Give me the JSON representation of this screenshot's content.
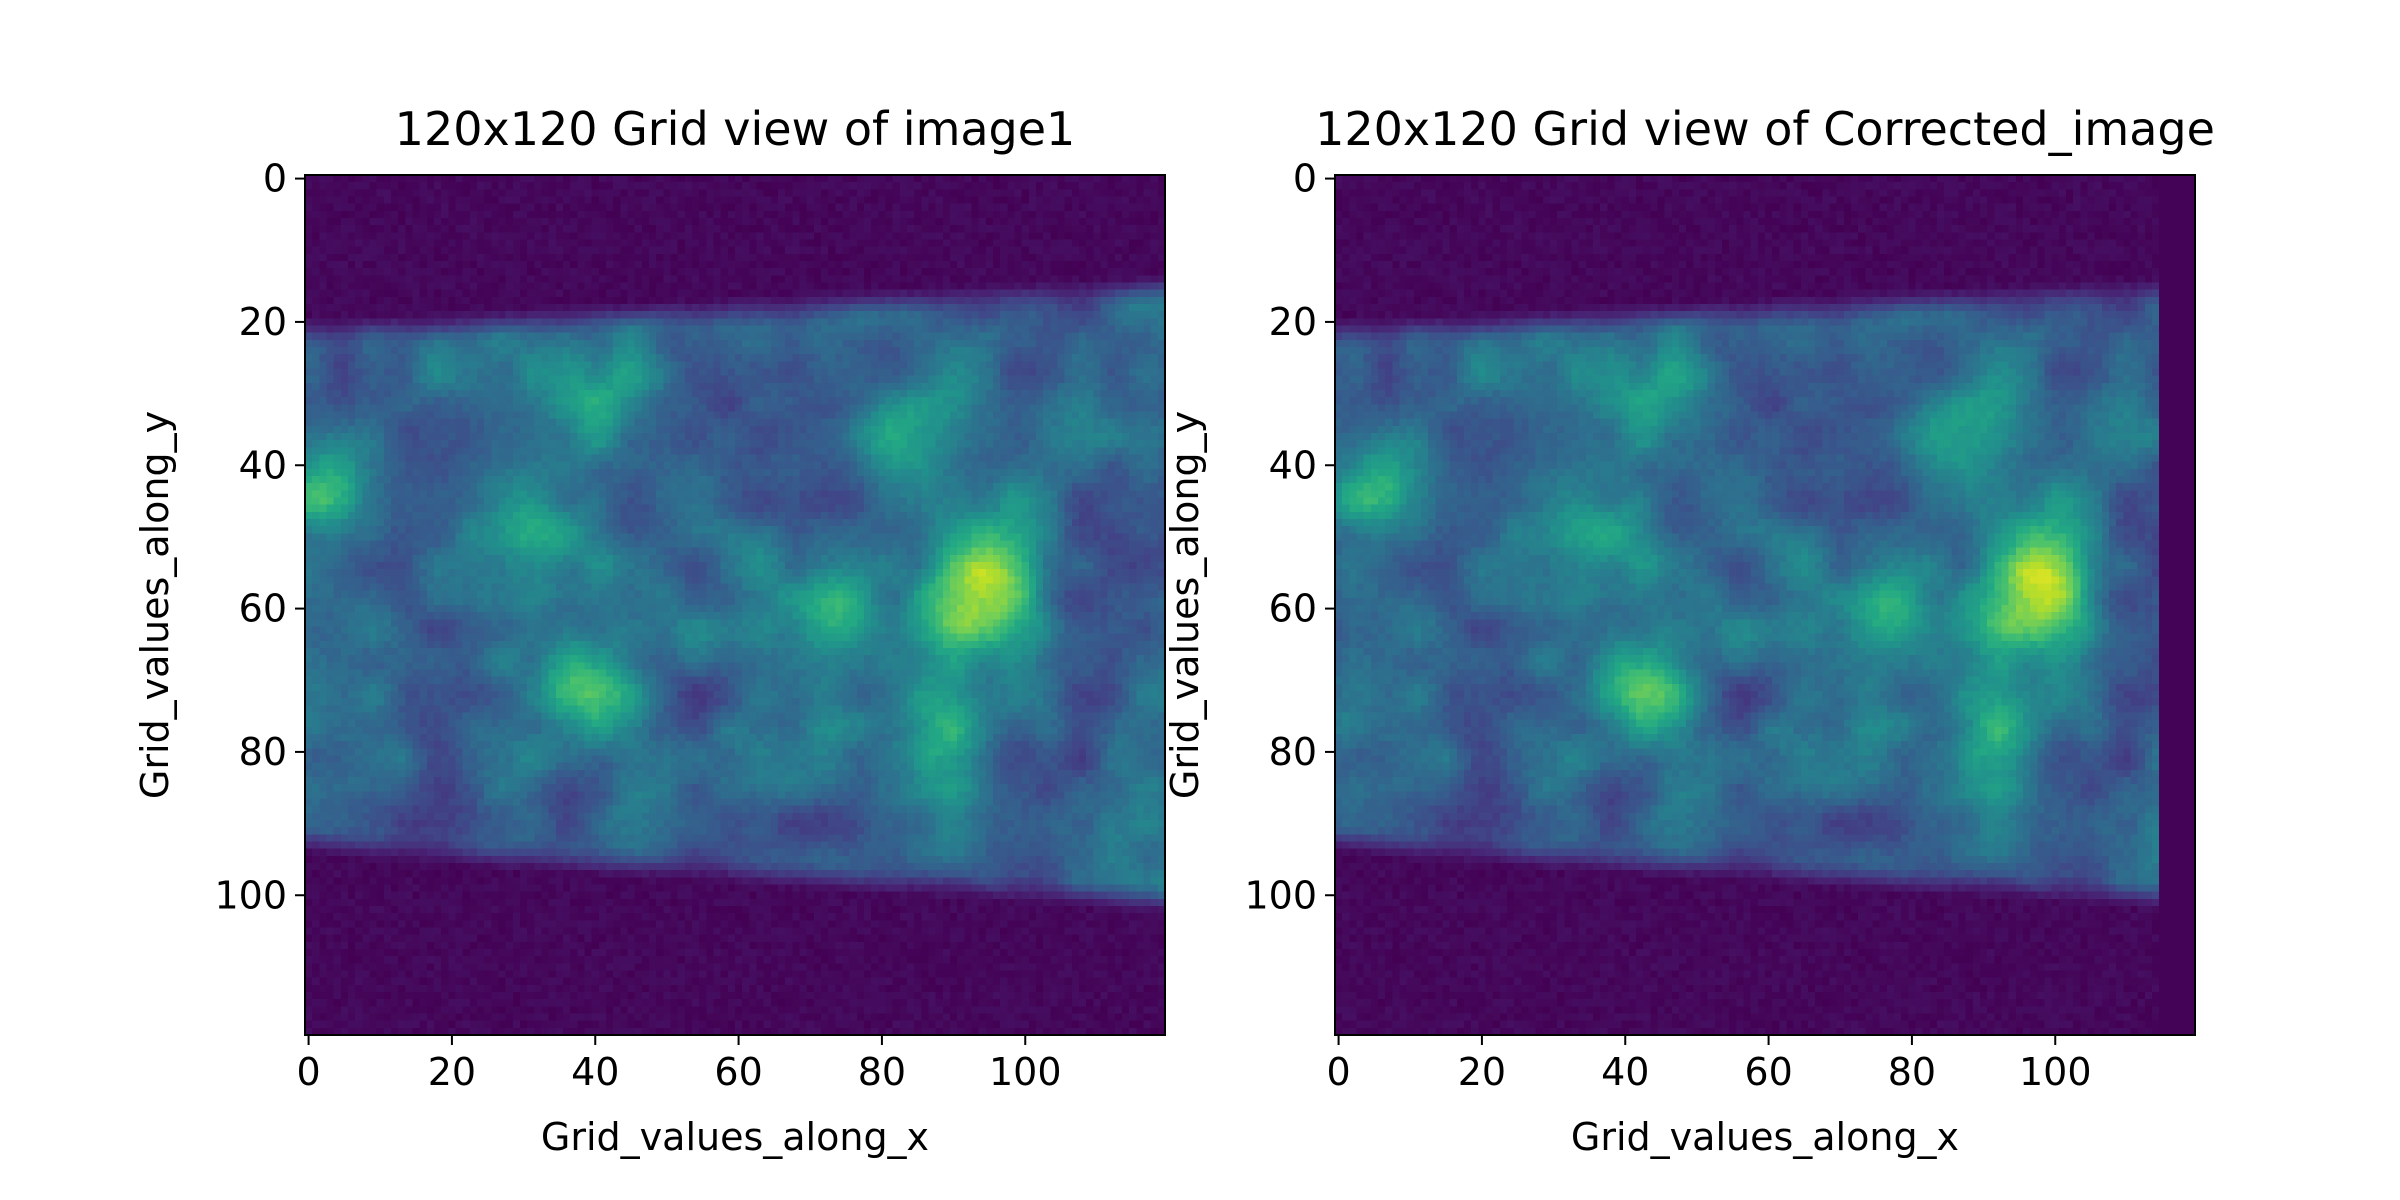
{
  "chart_data": [
    {
      "type": "heatmap",
      "title": "120x120 Grid view of image1",
      "xlabel": "Grid_values_along_x",
      "ylabel": "Grid_values_along_y",
      "grid_size": [
        120,
        120
      ],
      "xlim": [
        0,
        120
      ],
      "ylim": [
        120,
        0
      ],
      "xticks": [
        0,
        20,
        40,
        60,
        80,
        100
      ],
      "yticks": [
        0,
        20,
        40,
        60,
        80,
        100
      ],
      "colormap": "viridis",
      "band": {
        "top_left": 21,
        "top_right": 15,
        "bottom_left": 93,
        "bottom_right": 101
      },
      "hotspots": [
        {
          "x": 93,
          "y": 57,
          "intensity": 1.0
        },
        {
          "x": 38,
          "y": 71,
          "intensity": 0.72
        },
        {
          "x": 33,
          "y": 48,
          "intensity": 0.55
        },
        {
          "x": 74,
          "y": 59,
          "intensity": 0.5
        },
        {
          "x": 88,
          "y": 76,
          "intensity": 0.45
        },
        {
          "x": 3,
          "y": 42,
          "intensity": 0.5
        },
        {
          "x": 84,
          "y": 36,
          "intensity": 0.45
        },
        {
          "x": 42,
          "y": 33,
          "intensity": 0.42
        }
      ],
      "shifted_columns": 0,
      "edge_fill_columns": 0
    },
    {
      "type": "heatmap",
      "title": "120x120 Grid view of Corrected_image",
      "xlabel": "Grid_values_along_x",
      "ylabel": "Grid_values_along_y",
      "grid_size": [
        120,
        120
      ],
      "xlim": [
        0,
        120
      ],
      "ylim": [
        120,
        0
      ],
      "xticks": [
        0,
        20,
        40,
        60,
        80,
        100
      ],
      "yticks": [
        0,
        20,
        40,
        60,
        80,
        100
      ],
      "colormap": "viridis",
      "band": {
        "top_left": 21,
        "top_right": 15,
        "bottom_left": 93,
        "bottom_right": 101
      },
      "hotspots": [
        {
          "x": 95,
          "y": 57,
          "intensity": 1.0
        },
        {
          "x": 40,
          "y": 71,
          "intensity": 0.72
        },
        {
          "x": 35,
          "y": 48,
          "intensity": 0.55
        },
        {
          "x": 76,
          "y": 59,
          "intensity": 0.5
        },
        {
          "x": 90,
          "y": 76,
          "intensity": 0.45
        },
        {
          "x": 5,
          "y": 42,
          "intensity": 0.5
        },
        {
          "x": 86,
          "y": 36,
          "intensity": 0.45
        },
        {
          "x": 44,
          "y": 33,
          "intensity": 0.42
        }
      ],
      "shifted_columns": 2,
      "edge_fill_columns": 5
    }
  ]
}
